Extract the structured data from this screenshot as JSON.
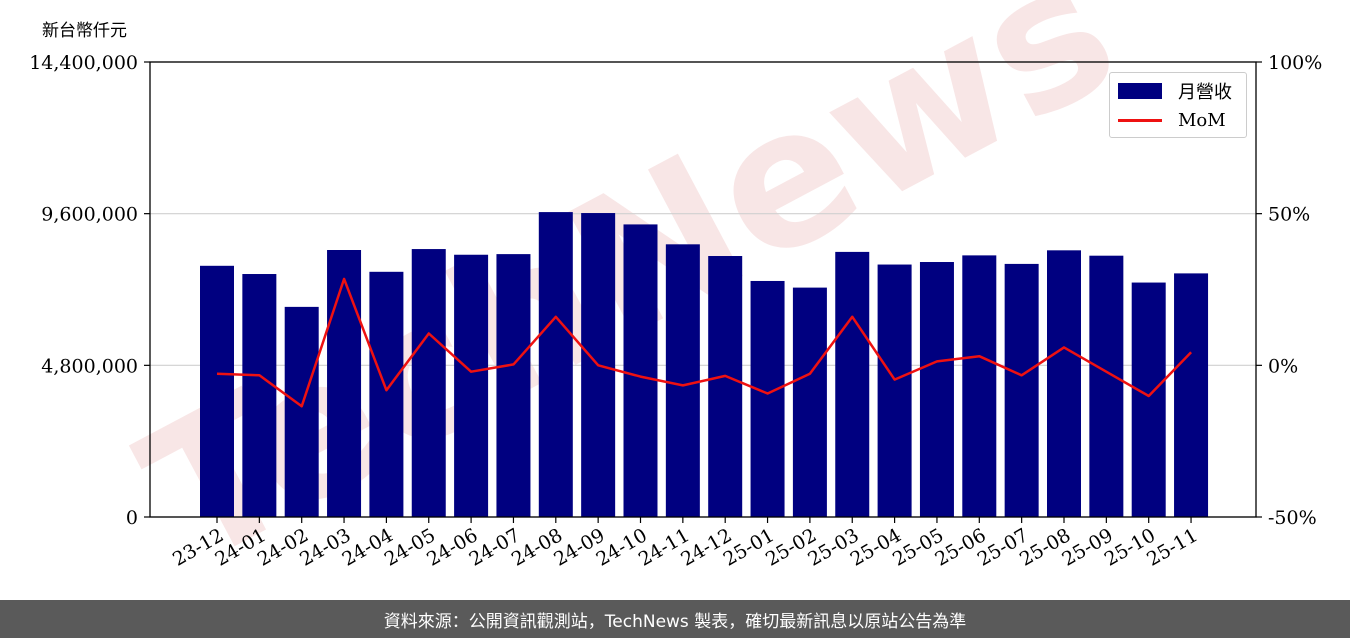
{
  "unit_label": "新台幣仟元",
  "footer_text": "資料來源：公開資訊觀測站，TechNews 製表，確切最新訊息以原站公告為準",
  "colors": {
    "bar": "#000080",
    "line": "#ee1111",
    "footer_bg": "#5a5a5a",
    "watermark": "#f4d6d6"
  },
  "watermark_text": "TechNews",
  "chart_data": {
    "type": "bar",
    "categories": [
      "23-12",
      "24-01",
      "24-02",
      "24-03",
      "24-04",
      "24-05",
      "24-06",
      "24-07",
      "24-08",
      "24-09",
      "24-10",
      "24-11",
      "24-12",
      "25-01",
      "25-02",
      "25-03",
      "25-04",
      "25-05",
      "25-06",
      "25-07",
      "25-08",
      "25-09",
      "25-10",
      "25-11"
    ],
    "series": [
      {
        "name": "月營收",
        "type": "bar",
        "axis": "left",
        "values": [
          7950000,
          7690000,
          6650000,
          8450000,
          7760000,
          8480000,
          8300000,
          8320000,
          9650000,
          9620000,
          9260000,
          8630000,
          8260000,
          7470000,
          7260000,
          8390000,
          7990000,
          8070000,
          8280000,
          8010000,
          8440000,
          8270000,
          7420000,
          7710000
        ]
      },
      {
        "name": "MoM",
        "type": "line",
        "axis": "right",
        "values": [
          -2.8,
          -3.3,
          -13.5,
          28.5,
          -8.2,
          10.5,
          -2.1,
          0.3,
          16.0,
          0.0,
          -3.7,
          -6.6,
          -3.5,
          -9.3,
          -2.8,
          16.0,
          -4.7,
          1.3,
          3.0,
          -3.3,
          5.9,
          -2.1,
          -10.1,
          4.3
        ]
      }
    ],
    "left_axis": {
      "ticks": [
        "0",
        "4,800,000",
        "9,600,000",
        "14,400,000"
      ],
      "ylim": [
        0,
        14400000
      ]
    },
    "right_axis": {
      "ticks": [
        "-50%",
        "0%",
        "50%",
        "100%"
      ],
      "ylim": [
        -50,
        100
      ]
    },
    "grid": "horizontal",
    "legend_position": "top-right"
  }
}
